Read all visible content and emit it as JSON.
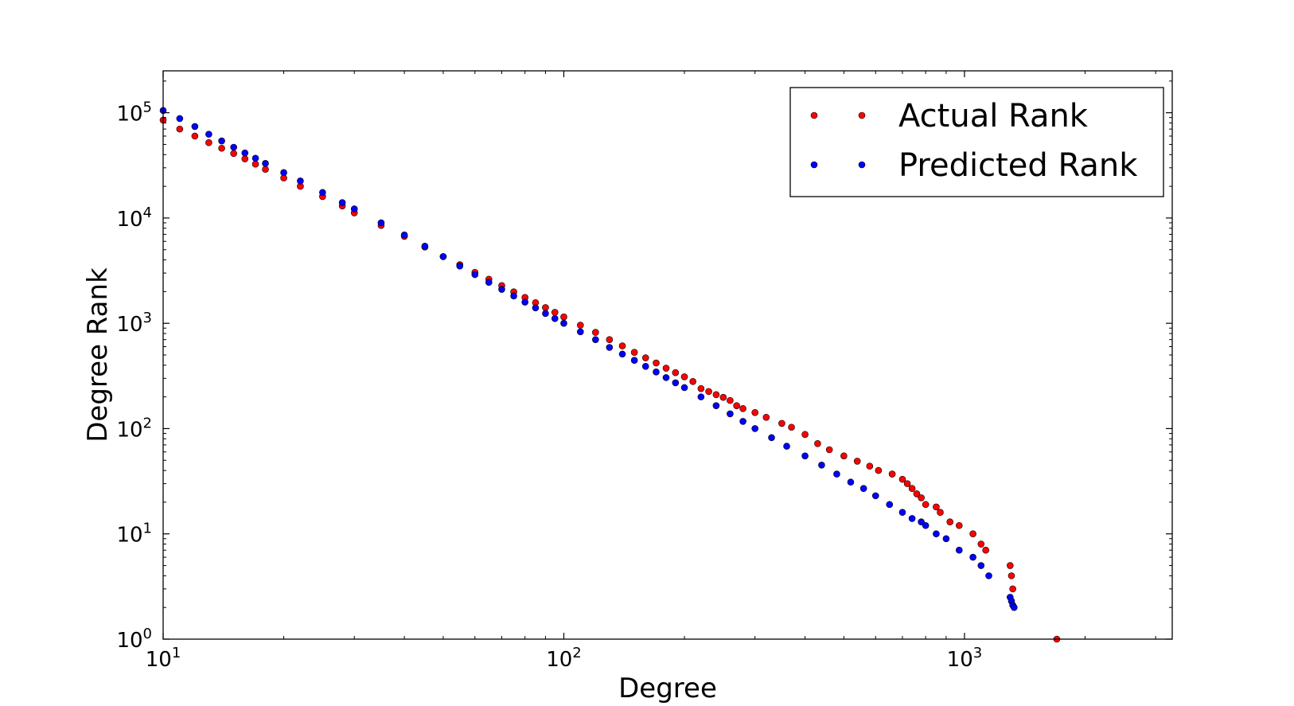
{
  "chart_data": {
    "type": "scatter",
    "title": "",
    "xlabel": "Degree",
    "ylabel": "Degree Rank",
    "xscale": "log",
    "yscale": "log",
    "xlim": [
      10,
      3300
    ],
    "ylim": [
      1,
      250000
    ],
    "x_ticks": [
      {
        "base": "10",
        "exp": "1",
        "value": 10
      },
      {
        "base": "10",
        "exp": "2",
        "value": 100
      },
      {
        "base": "10",
        "exp": "3",
        "value": 1000
      }
    ],
    "y_ticks": [
      {
        "base": "10",
        "exp": "0",
        "value": 1
      },
      {
        "base": "10",
        "exp": "1",
        "value": 10
      },
      {
        "base": "10",
        "exp": "2",
        "value": 100
      },
      {
        "base": "10",
        "exp": "3",
        "value": 1000
      },
      {
        "base": "10",
        "exp": "4",
        "value": 10000
      },
      {
        "base": "10",
        "exp": "5",
        "value": 100000
      }
    ],
    "grid": false,
    "legend_position": "top-right",
    "series": [
      {
        "name": "Actual Rank",
        "color": "#ff0000",
        "points": [
          [
            10,
            85000
          ],
          [
            11,
            70000
          ],
          [
            12,
            60000
          ],
          [
            13,
            52000
          ],
          [
            14,
            46000
          ],
          [
            15,
            41000
          ],
          [
            16,
            36500
          ],
          [
            17,
            32500
          ],
          [
            18,
            29000
          ],
          [
            20,
            24000
          ],
          [
            22,
            20000
          ],
          [
            25,
            16000
          ],
          [
            28,
            13000
          ],
          [
            30,
            11200
          ],
          [
            35,
            8500
          ],
          [
            40,
            6700
          ],
          [
            45,
            5300
          ],
          [
            50,
            4300
          ],
          [
            55,
            3600
          ],
          [
            60,
            3050
          ],
          [
            65,
            2620
          ],
          [
            70,
            2280
          ],
          [
            75,
            1990
          ],
          [
            80,
            1760
          ],
          [
            85,
            1570
          ],
          [
            90,
            1410
          ],
          [
            95,
            1270
          ],
          [
            100,
            1150
          ],
          [
            110,
            960
          ],
          [
            120,
            820
          ],
          [
            130,
            700
          ],
          [
            140,
            610
          ],
          [
            150,
            530
          ],
          [
            160,
            470
          ],
          [
            170,
            420
          ],
          [
            180,
            375
          ],
          [
            190,
            340
          ],
          [
            200,
            310
          ],
          [
            210,
            280
          ],
          [
            220,
            240
          ],
          [
            230,
            225
          ],
          [
            240,
            210
          ],
          [
            250,
            198
          ],
          [
            260,
            185
          ],
          [
            270,
            165
          ],
          [
            280,
            155
          ],
          [
            300,
            142
          ],
          [
            320,
            128
          ],
          [
            350,
            112
          ],
          [
            370,
            103
          ],
          [
            400,
            88
          ],
          [
            430,
            72
          ],
          [
            460,
            63
          ],
          [
            500,
            55
          ],
          [
            540,
            49
          ],
          [
            580,
            44
          ],
          [
            610,
            40
          ],
          [
            660,
            37
          ],
          [
            700,
            33
          ],
          [
            720,
            30
          ],
          [
            740,
            27
          ],
          [
            760,
            24
          ],
          [
            780,
            22
          ],
          [
            800,
            19
          ],
          [
            850,
            18
          ],
          [
            870,
            16
          ],
          [
            920,
            13
          ],
          [
            970,
            12
          ],
          [
            1050,
            10
          ],
          [
            1100,
            8
          ],
          [
            1130,
            7
          ],
          [
            1300,
            5
          ],
          [
            1310,
            4
          ],
          [
            1320,
            3
          ],
          [
            1700,
            1
          ]
        ]
      },
      {
        "name": "Predicted Rank",
        "color": "#0000ff",
        "points": [
          [
            10,
            105000
          ],
          [
            11,
            88000
          ],
          [
            12,
            74000
          ],
          [
            13,
            62500
          ],
          [
            14,
            54000
          ],
          [
            15,
            47000
          ],
          [
            16,
            41500
          ],
          [
            17,
            37000
          ],
          [
            18,
            33000
          ],
          [
            20,
            27000
          ],
          [
            22,
            22500
          ],
          [
            25,
            17500
          ],
          [
            28,
            14000
          ],
          [
            30,
            12200
          ],
          [
            35,
            9000
          ],
          [
            40,
            6900
          ],
          [
            45,
            5400
          ],
          [
            50,
            4300
          ],
          [
            55,
            3500
          ],
          [
            60,
            2900
          ],
          [
            65,
            2450
          ],
          [
            70,
            2100
          ],
          [
            75,
            1820
          ],
          [
            80,
            1590
          ],
          [
            85,
            1400
          ],
          [
            90,
            1240
          ],
          [
            95,
            1110
          ],
          [
            100,
            1000
          ],
          [
            110,
            830
          ],
          [
            120,
            700
          ],
          [
            130,
            590
          ],
          [
            140,
            510
          ],
          [
            150,
            445
          ],
          [
            160,
            390
          ],
          [
            170,
            345
          ],
          [
            180,
            305
          ],
          [
            190,
            272
          ],
          [
            200,
            245
          ],
          [
            220,
            200
          ],
          [
            240,
            165
          ],
          [
            260,
            138
          ],
          [
            280,
            117
          ],
          [
            300,
            100
          ],
          [
            330,
            82
          ],
          [
            360,
            68
          ],
          [
            400,
            55
          ],
          [
            440,
            45
          ],
          [
            480,
            37
          ],
          [
            520,
            31
          ],
          [
            560,
            27
          ],
          [
            600,
            23
          ],
          [
            650,
            19
          ],
          [
            700,
            16
          ],
          [
            740,
            14
          ],
          [
            780,
            13
          ],
          [
            800,
            12
          ],
          [
            850,
            10
          ],
          [
            900,
            9
          ],
          [
            970,
            7
          ],
          [
            1050,
            6
          ],
          [
            1100,
            5
          ],
          [
            1150,
            4
          ],
          [
            1300,
            2.5
          ],
          [
            1310,
            2.3
          ],
          [
            1320,
            2.1
          ],
          [
            1330,
            2
          ]
        ]
      }
    ]
  }
}
